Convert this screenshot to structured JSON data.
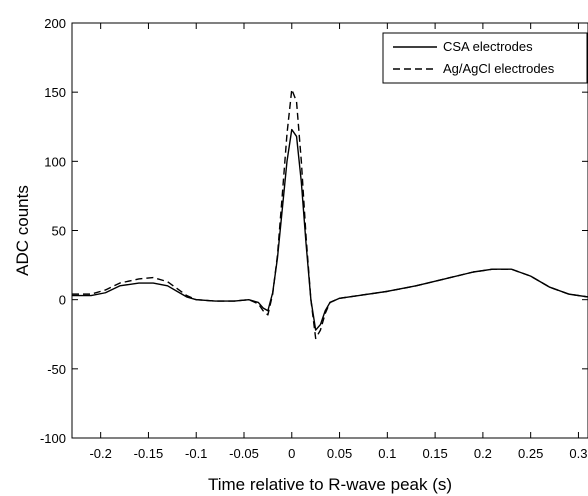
{
  "chart_data": {
    "type": "line",
    "title": "",
    "xlabel": "Time relative to R-wave peak (s)",
    "ylabel": "ADC counts",
    "xlim": [
      -0.23,
      0.31
    ],
    "ylim": [
      -100,
      200
    ],
    "xticks": [
      -0.2,
      -0.15,
      -0.1,
      -0.05,
      0,
      0.05,
      0.1,
      0.15,
      0.2,
      0.25,
      0.3
    ],
    "xtick_labels": [
      "-0.2",
      "-0.15",
      "-0.1",
      "-0.05",
      "0",
      "0.05",
      "0.1",
      "0.15",
      "0.2",
      "0.25",
      "0.3"
    ],
    "yticks": [
      -100,
      -50,
      0,
      50,
      100,
      150,
      200
    ],
    "ytick_labels": [
      "-100",
      "-50",
      "0",
      "50",
      "100",
      "150",
      "200"
    ],
    "grid": false,
    "legend_position": "top-right",
    "series": [
      {
        "name": "CSA electrodes",
        "style": "solid",
        "color": "#000000",
        "x": [
          -0.23,
          -0.21,
          -0.195,
          -0.18,
          -0.16,
          -0.145,
          -0.13,
          -0.12,
          -0.11,
          -0.1,
          -0.08,
          -0.06,
          -0.045,
          -0.035,
          -0.03,
          -0.025,
          -0.02,
          -0.015,
          -0.01,
          -0.005,
          0,
          0.005,
          0.01,
          0.015,
          0.02,
          0.025,
          0.03,
          0.035,
          0.04,
          0.05,
          0.07,
          0.1,
          0.13,
          0.16,
          0.19,
          0.21,
          0.23,
          0.25,
          0.27,
          0.29,
          0.31
        ],
        "y": [
          3,
          3,
          5,
          10,
          12,
          12,
          10,
          6,
          2,
          0,
          -1,
          -1,
          0,
          -2,
          -6,
          -8,
          5,
          30,
          65,
          100,
          123,
          118,
          85,
          40,
          0,
          -22,
          -18,
          -8,
          -2,
          1,
          3,
          6,
          10,
          15,
          20,
          22,
          22,
          17,
          9,
          4,
          2
        ]
      },
      {
        "name": "Ag/AgCl electrodes",
        "style": "dashed",
        "color": "#000000",
        "x": [
          -0.23,
          -0.21,
          -0.195,
          -0.18,
          -0.16,
          -0.145,
          -0.13,
          -0.12,
          -0.11,
          -0.1,
          -0.08,
          -0.06,
          -0.045,
          -0.035,
          -0.03,
          -0.025,
          -0.02,
          -0.015,
          -0.01,
          -0.005,
          0,
          0.005,
          0.01,
          0.015,
          0.02,
          0.025,
          0.03,
          0.035,
          0.04,
          0.05,
          0.07,
          0.1,
          0.13,
          0.16,
          0.19,
          0.21,
          0.23,
          0.25,
          0.27,
          0.29,
          0.31
        ],
        "y": [
          4,
          4,
          7,
          12,
          15,
          16,
          13,
          8,
          3,
          0,
          -1,
          -1,
          0,
          -3,
          -8,
          -11,
          4,
          32,
          75,
          120,
          152,
          143,
          100,
          45,
          0,
          -28,
          -22,
          -10,
          -2,
          1,
          3,
          6,
          10,
          15,
          20,
          22,
          22,
          17,
          9,
          4,
          2
        ]
      }
    ]
  }
}
